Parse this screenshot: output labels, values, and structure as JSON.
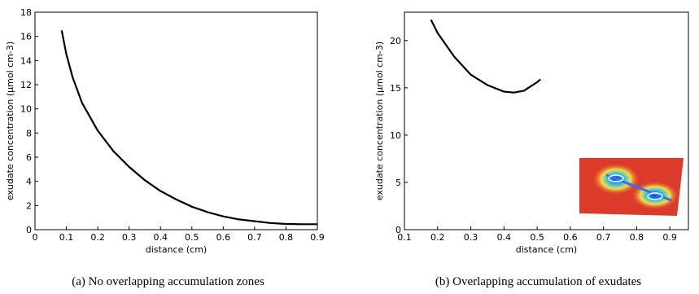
{
  "chart_data": [
    {
      "type": "line",
      "caption": "(a) No overlapping accumulation zones",
      "xlabel": "distance (cm)",
      "ylabel": "exudate concentration (µmol cm-3)",
      "x": [
        0.085,
        0.1,
        0.12,
        0.15,
        0.2,
        0.25,
        0.3,
        0.35,
        0.4,
        0.45,
        0.5,
        0.55,
        0.6,
        0.65,
        0.7,
        0.75,
        0.8,
        0.85,
        0.9
      ],
      "values": [
        16.5,
        14.5,
        12.6,
        10.5,
        8.2,
        6.5,
        5.2,
        4.1,
        3.2,
        2.5,
        1.9,
        1.45,
        1.1,
        0.85,
        0.7,
        0.55,
        0.47,
        0.45,
        0.45
      ],
      "color": "#000000",
      "xlim": [
        0,
        0.9
      ],
      "xticks": [
        0,
        0.1,
        0.2,
        0.3,
        0.4,
        0.5,
        0.6,
        0.7,
        0.8,
        0.9
      ],
      "ylim": [
        0,
        18
      ],
      "yticks": [
        0,
        2,
        4,
        6,
        8,
        10,
        12,
        14,
        16,
        18
      ]
    },
    {
      "type": "line",
      "caption": "(b) Overlapping accumulation of exudates",
      "xlabel": "distance (cm)",
      "ylabel": "exudate concentration (µmol cm-3)",
      "x": [
        0.18,
        0.2,
        0.25,
        0.3,
        0.35,
        0.4,
        0.43,
        0.46,
        0.5,
        0.51
      ],
      "values": [
        22.2,
        20.8,
        18.3,
        16.4,
        15.3,
        14.6,
        14.5,
        14.7,
        15.6,
        15.9
      ],
      "color": "#000000",
      "xlim": [
        0.1,
        0.956
      ],
      "xticks": [
        0.1,
        0.2,
        0.3,
        0.4,
        0.5,
        0.6,
        0.7,
        0.8,
        0.9
      ],
      "ylim": [
        0,
        23
      ],
      "yticks": [
        0,
        5,
        10,
        15,
        20
      ]
    }
  ]
}
